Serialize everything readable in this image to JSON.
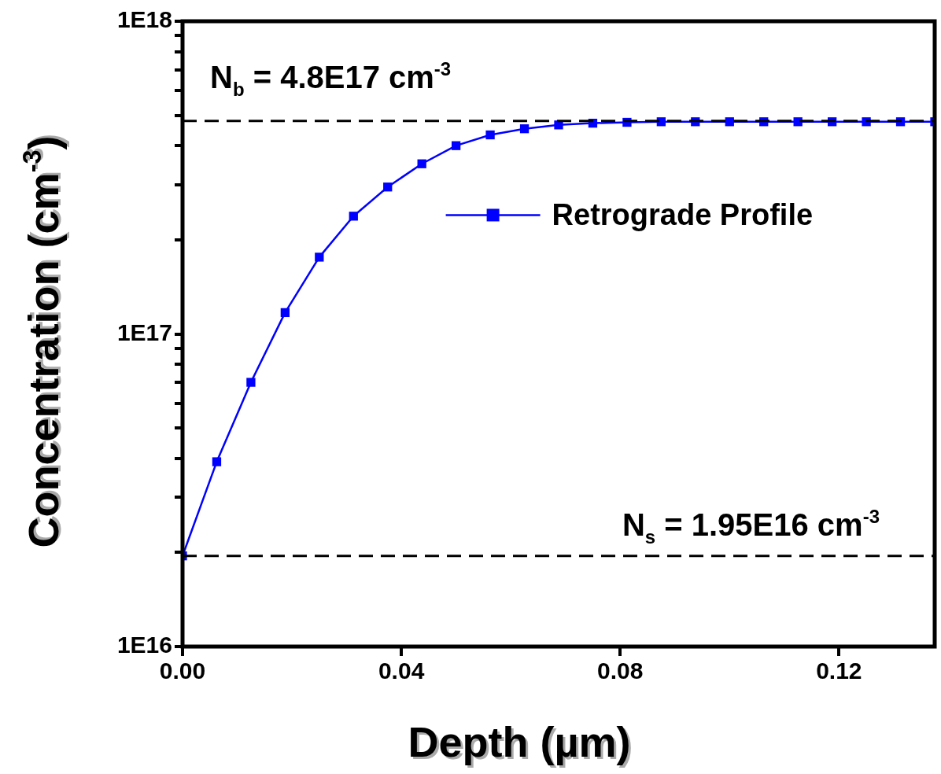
{
  "chart_data": {
    "type": "line",
    "xlabel": "Depth (µm)",
    "ylabel": "Concentration (cm$^{-3}$)",
    "x": [
      0,
      0.00625,
      0.0125,
      0.01875,
      0.025,
      0.03125,
      0.0375,
      0.04375,
      0.05,
      0.05625,
      0.0625,
      0.06875,
      0.075,
      0.08125,
      0.0875,
      0.09375,
      0.1,
      0.10625,
      0.1125,
      0.11875,
      0.125,
      0.13125,
      0.1375
    ],
    "series": [
      {
        "name": "Retrograde Profile",
        "color": "#0000ff",
        "values": [
          1.95e+16,
          3.9e+16,
          7e+16,
          1.17e+17,
          1.76e+17,
          2.38e+17,
          2.95e+17,
          3.5e+17,
          4e+17,
          4.33e+17,
          4.53e+17,
          4.66e+17,
          4.72e+17,
          4.75e+17,
          4.77e+17,
          4.77e+17,
          4.77e+17,
          4.77e+17,
          4.77e+17,
          4.77e+17,
          4.77e+17,
          4.77e+17,
          4.77e+17
        ]
      }
    ],
    "xlim": [
      0,
      0.1375
    ],
    "xticks": [
      {
        "value": 0,
        "label": "0.00"
      },
      {
        "value": 0.04,
        "label": "0.04"
      },
      {
        "value": 0.08,
        "label": "0.08"
      },
      {
        "value": 0.12,
        "label": "0.12"
      }
    ],
    "ylim": [
      1e+16,
      1e+18
    ],
    "yticks": [
      {
        "value": 1e+16,
        "label": "1E16"
      },
      {
        "value": 2e+16,
        "label": null
      },
      {
        "value": 3e+16,
        "label": null
      },
      {
        "value": 4e+16,
        "label": null
      },
      {
        "value": 5e+16,
        "label": null
      },
      {
        "value": 6e+16,
        "label": null
      },
      {
        "value": 7e+16,
        "label": null
      },
      {
        "value": 8e+16,
        "label": null
      },
      {
        "value": 9e+16,
        "label": null
      },
      {
        "value": 1e+17,
        "label": "1E17"
      },
      {
        "value": 2e+17,
        "label": null
      },
      {
        "value": 3e+17,
        "label": null
      },
      {
        "value": 4e+17,
        "label": null
      },
      {
        "value": 5e+17,
        "label": null
      },
      {
        "value": 6e+17,
        "label": null
      },
      {
        "value": 7e+17,
        "label": null
      },
      {
        "value": 8e+17,
        "label": null
      },
      {
        "value": 9e+17,
        "label": null
      },
      {
        "value": 1e+18,
        "label": "1E18"
      }
    ],
    "log": "y",
    "grid": false,
    "legend": "right",
    "marker": "square",
    "line_style": "solid",
    "annotations": [
      "N$_{b}$ = 4.8E17 cm$^{-3}$",
      "N$_{s}$ = 1.95E16 cm$^{-3}$"
    ],
    "ref_lines": [
      {
        "axis": "y",
        "value": 4.8e+17,
        "color": "#000000",
        "line_style": "dashed"
      },
      {
        "axis": "y",
        "value": 1.95e+16,
        "color": "#000000",
        "line_style": "dashed"
      }
    ]
  }
}
